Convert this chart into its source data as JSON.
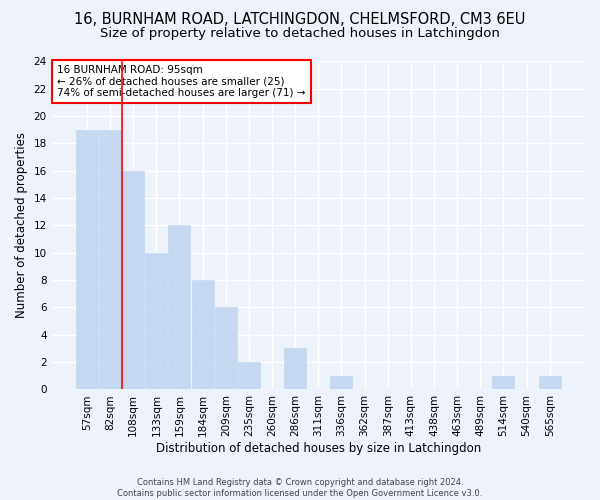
{
  "title_line1": "16, BURNHAM ROAD, LATCHINGDON, CHELMSFORD, CM3 6EU",
  "title_line2": "Size of property relative to detached houses in Latchingdon",
  "xlabel": "Distribution of detached houses by size in Latchingdon",
  "ylabel": "Number of detached properties",
  "footer_line1": "Contains HM Land Registry data © Crown copyright and database right 2024.",
  "footer_line2": "Contains public sector information licensed under the Open Government Licence v3.0.",
  "categories": [
    "57sqm",
    "82sqm",
    "108sqm",
    "133sqm",
    "159sqm",
    "184sqm",
    "209sqm",
    "235sqm",
    "260sqm",
    "286sqm",
    "311sqm",
    "336sqm",
    "362sqm",
    "387sqm",
    "413sqm",
    "438sqm",
    "463sqm",
    "489sqm",
    "514sqm",
    "540sqm",
    "565sqm"
  ],
  "values": [
    19,
    19,
    16,
    10,
    12,
    8,
    6,
    2,
    0,
    3,
    0,
    1,
    0,
    0,
    0,
    0,
    0,
    0,
    1,
    0,
    1
  ],
  "bar_color": "#c5d8f0",
  "bar_edge_color": "#c5d8f0",
  "background_color": "#eef2fb",
  "grid_color": "#ffffff",
  "red_line_x": 1.5,
  "annotation_text_line1": "16 BURNHAM ROAD: 95sqm",
  "annotation_text_line2": "← 26% of detached houses are smaller (25)",
  "annotation_text_line3": "74% of semi-detached houses are larger (71) →",
  "annotation_box_color": "white",
  "annotation_box_edge_color": "red",
  "ylim": [
    0,
    24
  ],
  "yticks": [
    0,
    2,
    4,
    6,
    8,
    10,
    12,
    14,
    16,
    18,
    20,
    22,
    24
  ],
  "title_fontsize": 10.5,
  "subtitle_fontsize": 9.5,
  "axis_label_fontsize": 8.5,
  "tick_fontsize": 7.5,
  "annotation_fontsize": 7.5,
  "footer_fontsize": 6.0
}
